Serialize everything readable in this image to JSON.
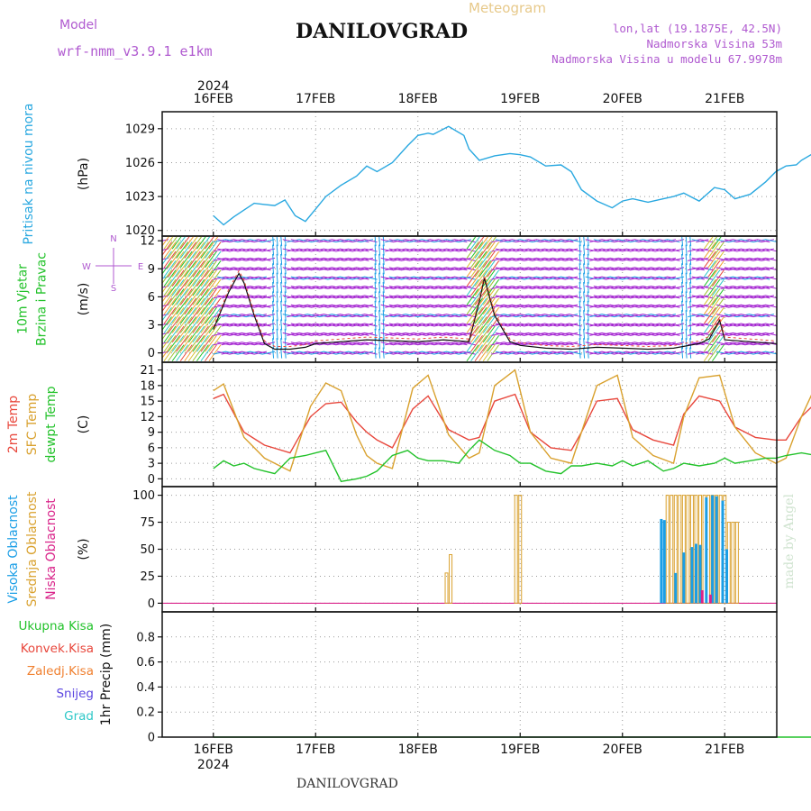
{
  "header": {
    "model_label": "Model",
    "model_name": "wrf-nmm_v3.9.1  e1km",
    "title": "DANILOVGRAD",
    "subtitle": "Meteogram",
    "coords": "lon,lat (19.1875E, 42.5N)",
    "elevation": "Nadmorska Visina 53m",
    "model_elevation": "Nadmorska Visina u modelu 67.9978m",
    "footer_title": "DANILOVGRAD",
    "watermark": "made by Angel"
  },
  "colors": {
    "pressure": "#29a8e0",
    "temp2m": "#e8473c",
    "sfc": "#d9a12e",
    "dew": "#22c22a",
    "high": "#1a9ee6",
    "mid": "#d9a12e",
    "low": "#d9248a",
    "wind_main": "#a21fd0",
    "total": "#22c22a",
    "conv": "#e8473c",
    "strat": "#f08030",
    "snow": "#5b45e0",
    "hail": "#2ec8c8"
  },
  "chart_data": {
    "x_year": "2024",
    "x_ticks": [
      "16FEB",
      "17FEB",
      "18FEB",
      "19FEB",
      "20FEB",
      "21FEB"
    ],
    "panels": [
      {
        "id": "pressure",
        "type": "line",
        "ylabel_left": [
          "Pritisak na nivou mora"
        ],
        "unit": "(hPa)",
        "ylim": [
          1019.5,
          1030.5
        ],
        "yticks": [
          1020,
          1023,
          1026,
          1029
        ],
        "series": [
          {
            "color": "#29a8e0",
            "x": [
              0,
              0.1,
              0.2,
              0.3,
              0.4,
              0.5,
              0.6,
              0.7,
              0.8,
              0.9,
              1.0,
              1.1,
              1.25,
              1.4,
              1.5,
              1.6,
              1.75,
              1.9,
              2.0,
              2.1,
              2.15,
              2.3,
              2.45,
              2.5,
              2.6,
              2.75,
              2.9,
              3.0,
              3.1,
              3.25,
              3.4,
              3.5,
              3.6,
              3.75,
              3.9,
              4.0,
              4.1,
              4.25,
              4.4,
              4.5,
              4.6,
              4.75,
              4.9,
              5.0,
              5.1,
              5.25,
              5.4,
              5.5,
              5.6,
              5.7,
              5.75,
              5.9,
              6.0
            ],
            "y": [
              1021.3,
              1020.5,
              1021.2,
              1021.8,
              1022.4,
              1022.3,
              1022.2,
              1022.7,
              1021.3,
              1020.8,
              1021.9,
              1023.0,
              1024.0,
              1024.8,
              1025.7,
              1025.2,
              1026.0,
              1027.5,
              1028.4,
              1028.6,
              1028.5,
              1029.2,
              1028.4,
              1027.2,
              1026.2,
              1026.6,
              1026.8,
              1026.7,
              1026.5,
              1025.7,
              1025.8,
              1025.2,
              1023.6,
              1022.6,
              1022.0,
              1022.6,
              1022.8,
              1022.5,
              1022.8,
              1023.0,
              1023.3,
              1022.6,
              1023.8,
              1023.6,
              1022.8,
              1023.2,
              1024.3,
              1025.2,
              1025.7,
              1025.8,
              1026.2,
              1027.0,
              1025.5
            ]
          }
        ]
      },
      {
        "id": "wind",
        "type": "wind",
        "ylabel_left": [
          "10m Vjetar",
          "Brzina i Pravac"
        ],
        "unit": "(m/s)",
        "ylim": [
          -1,
          12.5
        ],
        "yticks": [
          0,
          3,
          6,
          9,
          12
        ],
        "compass": [
          "N",
          "S",
          "W",
          "E"
        ],
        "speed_x": [
          0,
          0.15,
          0.25,
          0.3,
          0.4,
          0.5,
          0.6,
          0.75,
          0.9,
          1.0,
          1.25,
          1.5,
          1.75,
          2.0,
          2.25,
          2.5,
          2.6,
          2.65,
          2.75,
          2.9,
          3.0,
          3.25,
          3.5,
          3.75,
          4.0,
          4.25,
          4.5,
          4.75,
          4.85,
          4.95,
          5.0,
          5.25,
          5.5,
          5.75,
          6.0
        ],
        "speed_y": [
          2.5,
          6.5,
          8.5,
          7.5,
          4.0,
          1.0,
          0.4,
          0.4,
          0.6,
          1.0,
          1.2,
          1.4,
          1.3,
          1.2,
          1.4,
          1.2,
          5.5,
          8.0,
          4.0,
          1.2,
          0.8,
          0.5,
          0.4,
          0.6,
          0.5,
          0.4,
          0.5,
          1.0,
          1.5,
          3.5,
          1.4,
          1.2,
          1.0,
          1.0,
          0.8
        ]
      },
      {
        "id": "temp",
        "type": "line",
        "ylabel_left": [
          "2m Temp",
          "SFC Temp",
          "dewpt Temp"
        ],
        "unit": "(C)",
        "ylim": [
          -1.5,
          22.5
        ],
        "yticks": [
          0,
          3,
          6,
          9,
          12,
          15,
          18,
          21
        ],
        "series": [
          {
            "name": "2m Temp",
            "color": "#e8473c",
            "x": [
              0,
              0.1,
              0.3,
              0.5,
              0.75,
              0.95,
              1.1,
              1.25,
              1.4,
              1.5,
              1.6,
              1.75,
              1.95,
              2.1,
              2.3,
              2.5,
              2.6,
              2.75,
              2.95,
              3.1,
              3.3,
              3.5,
              3.6,
              3.75,
              3.95,
              4.1,
              4.3,
              4.5,
              4.6,
              4.75,
              4.95,
              5.1,
              5.3,
              5.5,
              5.6,
              5.75,
              5.95,
              6.0
            ],
            "y": [
              15.5,
              16.3,
              9.0,
              6.5,
              5.0,
              12.0,
              14.5,
              14.8,
              11.0,
              9.0,
              7.5,
              6.0,
              13.5,
              16.0,
              9.5,
              7.5,
              8.0,
              15.0,
              16.3,
              9.0,
              6.0,
              5.5,
              9.0,
              15.0,
              15.5,
              9.5,
              7.5,
              6.5,
              12.5,
              16.0,
              15.0,
              10.0,
              8.0,
              7.5,
              7.5,
              12.0,
              15.8,
              16.5
            ]
          },
          {
            "name": "SFC Temp",
            "color": "#d9a12e",
            "x": [
              0,
              0.1,
              0.3,
              0.5,
              0.75,
              0.95,
              1.1,
              1.25,
              1.4,
              1.5,
              1.6,
              1.75,
              1.95,
              2.1,
              2.3,
              2.5,
              2.6,
              2.75,
              2.95,
              3.1,
              3.3,
              3.5,
              3.6,
              3.75,
              3.95,
              4.1,
              4.3,
              4.5,
              4.6,
              4.75,
              4.95,
              5.1,
              5.3,
              5.5,
              5.6,
              5.75,
              5.95,
              6.0
            ],
            "y": [
              17.0,
              18.3,
              8.0,
              4.0,
              1.5,
              14.0,
              18.5,
              17.0,
              8.5,
              4.5,
              3.0,
              2.0,
              17.5,
              20.0,
              8.5,
              4.0,
              5.0,
              18.0,
              21.0,
              9.0,
              4.0,
              3.0,
              9.0,
              18.0,
              20.0,
              8.0,
              4.5,
              3.0,
              12.0,
              19.5,
              20.0,
              10.0,
              5.0,
              3.0,
              4.0,
              12.0,
              20.5,
              20.5
            ]
          },
          {
            "name": "dewpt Temp",
            "color": "#22c22a",
            "x": [
              0,
              0.1,
              0.2,
              0.3,
              0.4,
              0.5,
              0.6,
              0.75,
              0.9,
              1.0,
              1.1,
              1.25,
              1.4,
              1.5,
              1.6,
              1.75,
              1.9,
              2.0,
              2.1,
              2.25,
              2.4,
              2.5,
              2.6,
              2.75,
              2.9,
              3.0,
              3.1,
              3.25,
              3.4,
              3.5,
              3.6,
              3.75,
              3.9,
              4.0,
              4.1,
              4.25,
              4.4,
              4.5,
              4.6,
              4.75,
              4.9,
              5.0,
              5.1,
              5.25,
              5.4,
              5.5,
              5.6,
              5.75,
              5.9,
              6.0
            ],
            "y": [
              2.0,
              3.5,
              2.5,
              3.0,
              2.0,
              1.5,
              1.0,
              4.0,
              4.5,
              5.0,
              5.5,
              -0.5,
              0.0,
              0.5,
              1.5,
              4.5,
              5.5,
              4.0,
              3.5,
              3.5,
              3.0,
              5.5,
              7.5,
              5.5,
              4.5,
              3.0,
              3.0,
              1.5,
              1.0,
              2.5,
              2.5,
              3.0,
              2.5,
              3.5,
              2.5,
              3.5,
              1.5,
              2.0,
              3.0,
              2.5,
              3.0,
              4.0,
              3.0,
              3.5,
              4.0,
              4.0,
              4.5,
              5.0,
              4.5,
              5.0
            ]
          }
        ]
      },
      {
        "id": "cloud",
        "type": "bar",
        "ylabel_left": [
          "Visoka Oblacnost",
          "Srednja Oblacnost",
          "Niska Oblacnost"
        ],
        "unit": "(%)",
        "ylim": [
          -8,
          108
        ],
        "yticks": [
          0,
          25,
          50,
          75,
          100
        ],
        "bars": [
          {
            "series": "mid",
            "color": "#d9a12e",
            "style": "outline",
            "x": [
              2.28,
              2.32,
              2.96,
              3.0,
              4.44,
              4.48,
              4.52,
              4.56,
              4.6,
              4.64,
              4.68,
              4.72,
              4.76,
              4.8,
              4.84,
              4.88,
              4.92,
              4.96,
              5.0,
              5.04,
              5.08,
              5.12
            ],
            "y": [
              28,
              45,
              100,
              100,
              100,
              100,
              100,
              100,
              100,
              100,
              100,
              100,
              100,
              100,
              100,
              100,
              100,
              100,
              100,
              75,
              75,
              75
            ]
          },
          {
            "series": "high",
            "color": "#1a9ee6",
            "style": "solid",
            "x": [
              4.38,
              4.41,
              4.52,
              4.6,
              4.68,
              4.72,
              4.76,
              4.82,
              4.88,
              4.92,
              4.98,
              5.02
            ],
            "y": [
              78,
              77,
              28,
              47,
              52,
              55,
              54,
              98,
              100,
              99,
              95,
              50
            ]
          },
          {
            "series": "low",
            "color": "#d9248a",
            "style": "solid",
            "x": [
              4.78,
              4.86
            ],
            "y": [
              12,
              8
            ]
          }
        ]
      },
      {
        "id": "precip",
        "type": "line",
        "ylabel_left": [
          "Ukupna Kisa",
          "Konvek.Kisa",
          "Zaledj.Kisa",
          "Snijeg",
          "Grad"
        ],
        "unit": "1hr Precip (mm)",
        "ylim": [
          0,
          1.0
        ],
        "yticks": [
          0,
          0.2,
          0.4,
          0.6,
          0.8
        ],
        "ytick_labels": [
          "0",
          "0.2",
          "0.4",
          "0.6",
          "0.8"
        ],
        "series": [
          {
            "name": "Ukupna Kisa",
            "color": "#22c22a",
            "x": [
              0,
              6
            ],
            "y": [
              0,
              0
            ]
          }
        ]
      }
    ]
  }
}
